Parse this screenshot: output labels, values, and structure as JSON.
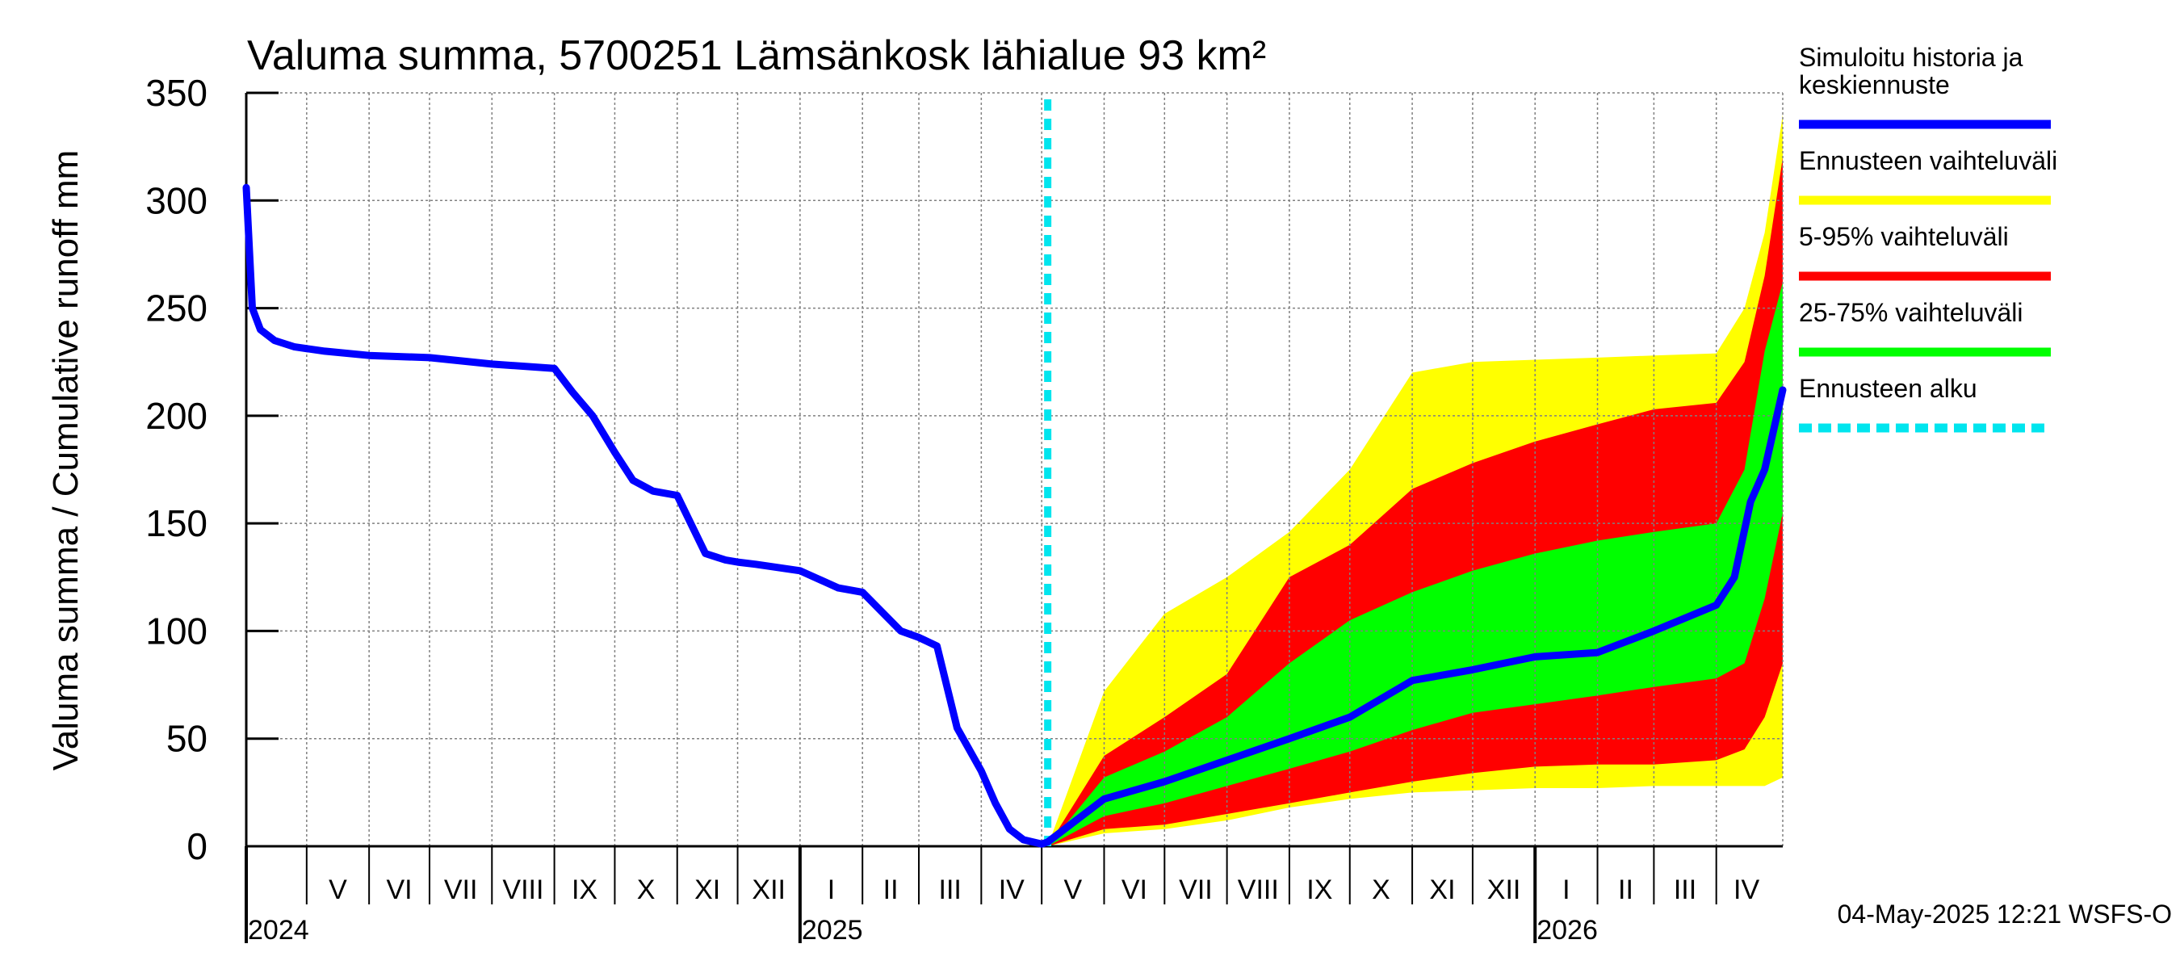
{
  "chart_data": {
    "type": "area",
    "title": "Valuma summa, 5700251 Lämsänkosk lähialue 93 km²",
    "ylabel": "Valuma summa / Cumulative runoff    mm",
    "ylim": [
      0,
      350
    ],
    "yticks": [
      0,
      50,
      100,
      150,
      200,
      250,
      300,
      350
    ],
    "xlim": [
      "2024-04-01",
      "2026-05-04"
    ],
    "forecast_start": "2025-05-04",
    "grid": true,
    "legend_position": "right",
    "months": [
      {
        "label": "V",
        "start": "2024-05-01",
        "end": "2024-06-01"
      },
      {
        "label": "VI",
        "start": "2024-06-01",
        "end": "2024-07-01"
      },
      {
        "label": "VII",
        "start": "2024-07-01",
        "end": "2024-08-01"
      },
      {
        "label": "VIII",
        "start": "2024-08-01",
        "end": "2024-09-01"
      },
      {
        "label": "IX",
        "start": "2024-09-01",
        "end": "2024-10-01"
      },
      {
        "label": "X",
        "start": "2024-10-01",
        "end": "2024-11-01"
      },
      {
        "label": "XI",
        "start": "2024-11-01",
        "end": "2024-12-01"
      },
      {
        "label": "XII",
        "start": "2024-12-01",
        "end": "2025-01-01"
      },
      {
        "label": "I",
        "start": "2025-01-01",
        "end": "2025-02-01"
      },
      {
        "label": "II",
        "start": "2025-02-01",
        "end": "2025-03-01"
      },
      {
        "label": "III",
        "start": "2025-03-01",
        "end": "2025-04-01"
      },
      {
        "label": "IV",
        "start": "2025-04-01",
        "end": "2025-05-01"
      },
      {
        "label": "V",
        "start": "2025-05-01",
        "end": "2025-06-01"
      },
      {
        "label": "VI",
        "start": "2025-06-01",
        "end": "2025-07-01"
      },
      {
        "label": "VII",
        "start": "2025-07-01",
        "end": "2025-08-01"
      },
      {
        "label": "VIII",
        "start": "2025-08-01",
        "end": "2025-09-01"
      },
      {
        "label": "IX",
        "start": "2025-09-01",
        "end": "2025-10-01"
      },
      {
        "label": "X",
        "start": "2025-10-01",
        "end": "2025-11-01"
      },
      {
        "label": "XI",
        "start": "2025-11-01",
        "end": "2025-12-01"
      },
      {
        "label": "XII",
        "start": "2025-12-01",
        "end": "2026-01-01"
      },
      {
        "label": "I",
        "start": "2026-01-01",
        "end": "2026-02-01"
      },
      {
        "label": "II",
        "start": "2026-02-01",
        "end": "2026-03-01"
      },
      {
        "label": "III",
        "start": "2026-03-01",
        "end": "2026-04-01"
      },
      {
        "label": "IV",
        "start": "2026-04-01",
        "end": "2026-05-01"
      }
    ],
    "years": [
      {
        "label": "2024",
        "date": "2024-04-01"
      },
      {
        "label": "2025",
        "date": "2025-01-01"
      },
      {
        "label": "2026",
        "date": "2026-01-01"
      }
    ],
    "legend": [
      {
        "label": "Simuloitu historia ja keskiennuste",
        "lines": [
          "Simuloitu historia ja",
          "keskiennuste"
        ],
        "color": "#0000ff",
        "style": "solid"
      },
      {
        "label": "Ennusteen vaihteluväli",
        "lines": [
          "Ennusteen vaihteluväli"
        ],
        "color": "#ffff00",
        "style": "solid"
      },
      {
        "label": "5-95% vaihteluväli",
        "lines": [
          "5-95% vaihteluväli"
        ],
        "color": "#ff0000",
        "style": "solid"
      },
      {
        "label": "25-75% vaihteluväli",
        "lines": [
          "25-75% vaihteluväli"
        ],
        "color": "#00ff00",
        "style": "solid"
      },
      {
        "label": "Ennusteen alku",
        "lines": [
          "Ennusteen alku"
        ],
        "color": "#00e5ee",
        "style": "dashed"
      }
    ],
    "x_dates": [
      "2025-05-04",
      "2025-06-01",
      "2025-07-01",
      "2025-08-01",
      "2025-09-01",
      "2025-10-01",
      "2025-11-01",
      "2025-12-01",
      "2026-01-01",
      "2026-02-01",
      "2026-03-01",
      "2026-04-01",
      "2026-04-15",
      "2026-04-25",
      "2026-05-04"
    ],
    "bands": [
      {
        "name": "Ennusteen vaihteluväli",
        "color": "#ffff00",
        "lower": [
          0,
          6,
          8,
          12,
          18,
          22,
          25,
          26,
          27,
          27,
          28,
          28,
          28,
          28,
          32
        ],
        "upper": [
          0,
          72,
          108,
          125,
          146,
          175,
          220,
          225,
          226,
          227,
          228,
          229,
          250,
          285,
          340
        ]
      },
      {
        "name": "5-95% vaihteluväli",
        "color": "#ff0000",
        "lower": [
          0,
          8,
          10,
          15,
          20,
          25,
          30,
          34,
          37,
          38,
          38,
          40,
          45,
          60,
          85
        ],
        "upper": [
          0,
          42,
          60,
          80,
          125,
          140,
          166,
          178,
          188,
          196,
          203,
          206,
          225,
          265,
          320
        ]
      },
      {
        "name": "25-75% vaihteluväli",
        "color": "#00ff00",
        "lower": [
          0,
          14,
          20,
          28,
          36,
          44,
          54,
          62,
          66,
          70,
          74,
          78,
          85,
          115,
          155
        ],
        "upper": [
          0,
          32,
          44,
          60,
          85,
          105,
          118,
          128,
          136,
          142,
          146,
          150,
          175,
          230,
          262
        ]
      }
    ],
    "series": [
      {
        "name": "Simuloitu historia ja keskiennuste",
        "color": "#0000ff",
        "x": [
          "2024-04-01",
          "2024-04-04",
          "2024-04-08",
          "2024-04-15",
          "2024-04-25",
          "2024-05-10",
          "2024-06-01",
          "2024-07-01",
          "2024-08-01",
          "2024-09-01",
          "2024-09-10",
          "2024-09-20",
          "2024-10-01",
          "2024-10-10",
          "2024-10-20",
          "2024-11-01",
          "2024-11-15",
          "2024-11-25",
          "2024-12-01",
          "2024-12-10",
          "2025-01-01",
          "2025-01-20",
          "2025-02-01",
          "2025-02-20",
          "2025-03-01",
          "2025-03-10",
          "2025-03-20",
          "2025-04-01",
          "2025-04-08",
          "2025-04-15",
          "2025-04-22",
          "2025-05-01",
          "2025-05-04",
          "2025-06-01",
          "2025-07-01",
          "2025-08-01",
          "2025-09-01",
          "2025-10-01",
          "2025-11-01",
          "2025-12-01",
          "2026-01-01",
          "2026-02-01",
          "2026-03-01",
          "2026-04-01",
          "2026-04-10",
          "2026-04-18",
          "2026-04-25",
          "2026-05-04"
        ],
        "y": [
          306,
          250,
          240,
          235,
          232,
          230,
          228,
          227,
          224,
          222,
          211,
          200,
          183,
          170,
          165,
          163,
          136,
          133,
          132,
          131,
          128,
          120,
          118,
          100,
          97,
          93,
          55,
          35,
          20,
          8,
          3,
          1,
          2,
          22,
          30,
          40,
          50,
          60,
          77,
          82,
          88,
          90,
          100,
          112,
          125,
          160,
          175,
          212
        ]
      }
    ]
  },
  "footer": "04-May-2025 12:21 WSFS-O"
}
